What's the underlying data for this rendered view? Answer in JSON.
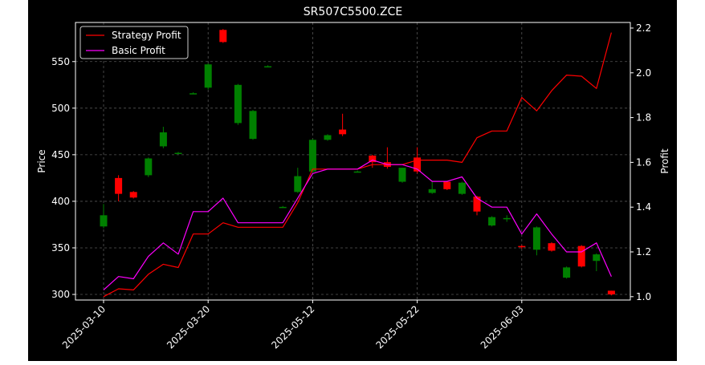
{
  "chart_data": {
    "type": "candlestick",
    "title": "SR507C5500.ZCE",
    "ylabel_left": "Price",
    "ylabel_right": "Profit",
    "ylim_left": [
      294,
      592
    ],
    "ylim_right": [
      0.985,
      2.225
    ],
    "yticks_left": [
      300,
      350,
      400,
      450,
      500,
      550
    ],
    "yticks_right": [
      1.0,
      1.2,
      1.4,
      1.6,
      1.8,
      2.0,
      2.2
    ],
    "xtick_labels": [
      {
        "label": "2025-03-10",
        "index": 0
      },
      {
        "label": "2025-03-20",
        "index": 7
      },
      {
        "label": "2025-05-12",
        "index": 14
      },
      {
        "label": "2025-05-22",
        "index": 21
      },
      {
        "label": "2025-06-03",
        "index": 28
      }
    ],
    "grid": true,
    "legend_position": "top-left",
    "colors": {
      "background": "#000000",
      "up": "#008000",
      "down": "#ff0000",
      "strategy": "#ff0000",
      "basic": "#ff00ff",
      "grid": "#555555",
      "text": "#ffffff"
    },
    "candles": [
      {
        "o": 373,
        "h": 397,
        "l": 371,
        "c": 385
      },
      {
        "o": 425,
        "h": 428,
        "l": 400,
        "c": 408
      },
      {
        "o": 410,
        "h": 411,
        "l": 403,
        "c": 404
      },
      {
        "o": 428,
        "h": 447,
        "l": 426,
        "c": 446
      },
      {
        "o": 459,
        "h": 480,
        "l": 457,
        "c": 474
      },
      {
        "o": 452,
        "h": 453,
        "l": 451,
        "c": 452
      },
      {
        "o": 516,
        "h": 517,
        "l": 515,
        "c": 516
      },
      {
        "o": 522,
        "h": 548,
        "l": 520,
        "c": 547
      },
      {
        "o": 584,
        "h": 585,
        "l": 570,
        "c": 571
      },
      {
        "o": 484,
        "h": 526,
        "l": 482,
        "c": 525
      },
      {
        "o": 467,
        "h": 498,
        "l": 466,
        "c": 497
      },
      {
        "o": 545,
        "h": 546,
        "l": 544,
        "c": 545
      },
      {
        "o": 394,
        "h": 395,
        "l": 393,
        "c": 394
      },
      {
        "o": 410,
        "h": 436,
        "l": 409,
        "c": 427
      },
      {
        "o": 432,
        "h": 467,
        "l": 430,
        "c": 466
      },
      {
        "o": 466,
        "h": 472,
        "l": 465,
        "c": 471
      },
      {
        "o": 477,
        "h": 494,
        "l": 470,
        "c": 472
      },
      {
        "o": 432,
        "h": 433,
        "l": 431,
        "c": 432
      },
      {
        "o": 449,
        "h": 450,
        "l": 436,
        "c": 442
      },
      {
        "o": 442,
        "h": 458,
        "l": 435,
        "c": 437
      },
      {
        "o": 421,
        "h": 436,
        "l": 420,
        "c": 436
      },
      {
        "o": 447,
        "h": 458,
        "l": 430,
        "c": 432
      },
      {
        "o": 409,
        "h": 421,
        "l": 408,
        "c": 413
      },
      {
        "o": 421,
        "h": 422,
        "l": 412,
        "c": 413
      },
      {
        "o": 408,
        "h": 421,
        "l": 407,
        "c": 420
      },
      {
        "o": 405,
        "h": 406,
        "l": 385,
        "c": 389
      },
      {
        "o": 374,
        "h": 384,
        "l": 373,
        "c": 383
      },
      {
        "o": 381,
        "h": 385,
        "l": 378,
        "c": 382
      },
      {
        "o": 352,
        "h": 353,
        "l": 349,
        "c": 351
      },
      {
        "o": 348,
        "h": 373,
        "l": 342,
        "c": 372
      },
      {
        "o": 355,
        "h": 356,
        "l": 346,
        "c": 347
      },
      {
        "o": 318,
        "h": 330,
        "l": 317,
        "c": 329
      },
      {
        "o": 352,
        "h": 353,
        "l": 329,
        "c": 330
      },
      {
        "o": 336,
        "h": 344,
        "l": 325,
        "c": 343
      },
      {
        "o": 304,
        "h": 304,
        "l": 299,
        "c": 300
      }
    ],
    "series": [
      {
        "name": "Strategy Profit",
        "color": "#ff0000",
        "values": [
          1.0,
          1.035,
          1.03,
          1.1,
          1.145,
          1.13,
          1.28,
          1.28,
          1.33,
          1.31,
          1.31,
          1.31,
          1.31,
          1.42,
          1.57,
          1.57,
          1.57,
          1.57,
          1.59,
          1.59,
          1.59,
          1.61,
          1.61,
          1.61,
          1.6,
          1.71,
          1.74,
          1.74,
          1.89,
          1.83,
          1.92,
          1.99,
          1.985,
          1.93,
          2.18
        ]
      },
      {
        "name": "Basic Profit",
        "color": "#ff00ff",
        "values": [
          1.03,
          1.09,
          1.08,
          1.18,
          1.24,
          1.19,
          1.38,
          1.38,
          1.44,
          1.33,
          1.33,
          1.33,
          1.33,
          1.44,
          1.55,
          1.57,
          1.57,
          1.57,
          1.61,
          1.59,
          1.59,
          1.57,
          1.515,
          1.515,
          1.535,
          1.44,
          1.4,
          1.4,
          1.28,
          1.37,
          1.28,
          1.2,
          1.2,
          1.24,
          1.09
        ]
      }
    ]
  }
}
